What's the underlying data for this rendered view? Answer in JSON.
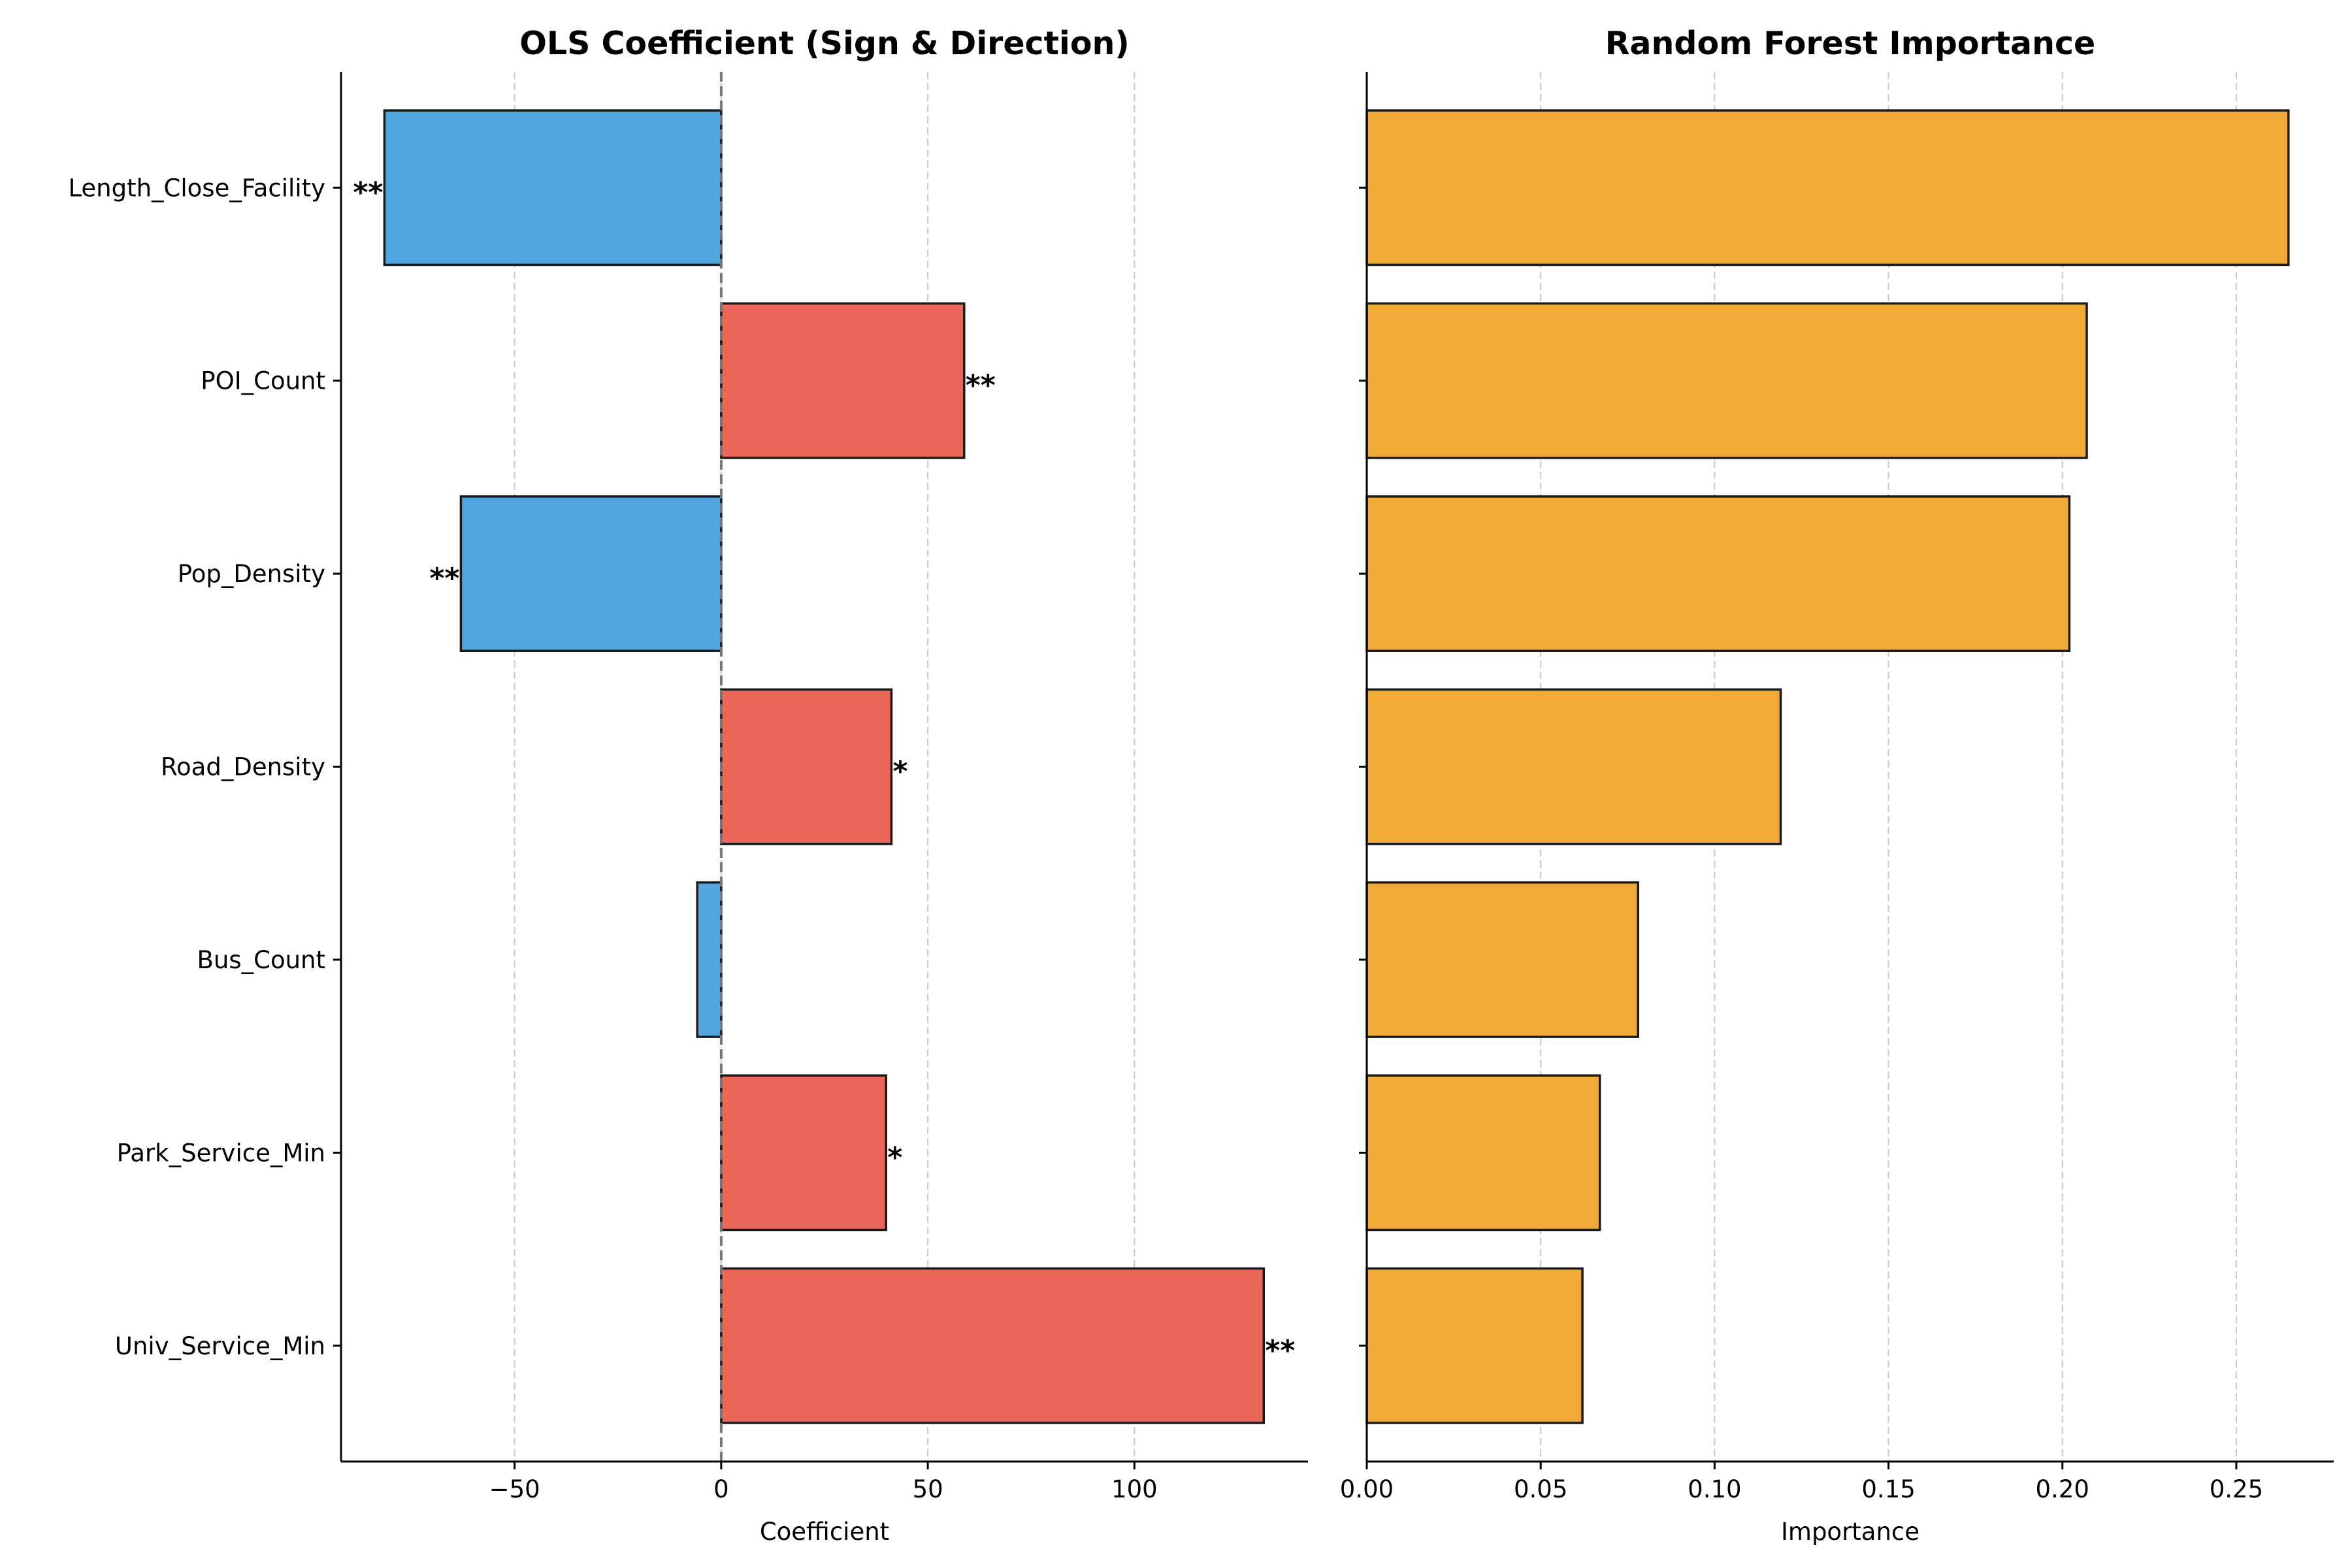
{
  "chart_data": [
    {
      "type": "bar",
      "orientation": "horizontal",
      "title": "OLS Coefficient (Sign & Direction)",
      "xlabel": "Coefficient",
      "ylabel": "",
      "categories": [
        "Length_Close_Facility",
        "POI_Count",
        "Pop_Density",
        "Road_Density",
        "Bus_Count",
        "Park_Service_Min",
        "Univ_Service_Min"
      ],
      "values": [
        -81.5,
        58.8,
        -63.0,
        41.2,
        -5.8,
        39.9,
        131.3
      ],
      "significance": [
        "**",
        "**",
        "**",
        "*",
        "",
        "*",
        "**"
      ],
      "xlim": [
        -92,
        142
      ],
      "xticks": [
        -50,
        0,
        50,
        100
      ],
      "xtick_labels": [
        "−50",
        "0",
        "50",
        "100"
      ],
      "grid": "x-dashed",
      "zero_line": true,
      "colors": {
        "positive": "#EB675A",
        "negative": "#52A6E0",
        "edge": "#1a1a1a"
      }
    },
    {
      "type": "bar",
      "orientation": "horizontal",
      "title": "Random Forest Importance",
      "xlabel": "Importance",
      "ylabel": "",
      "categories": [
        "Length_Close_Facility",
        "POI_Count",
        "Pop_Density",
        "Road_Density",
        "Bus_Count",
        "Park_Service_Min",
        "Univ_Service_Min"
      ],
      "values": [
        0.265,
        0.207,
        0.202,
        0.119,
        0.078,
        0.067,
        0.062
      ],
      "xlim": [
        0,
        0.278
      ],
      "xticks": [
        0,
        0.05,
        0.1,
        0.15,
        0.2,
        0.25
      ],
      "xtick_labels": [
        "0.00",
        "0.05",
        "0.10",
        "0.15",
        "0.20",
        "0.25"
      ],
      "grid": "x-dashed",
      "colors": {
        "bar": "#F2AA36",
        "edge": "#1a1a1a"
      }
    }
  ]
}
